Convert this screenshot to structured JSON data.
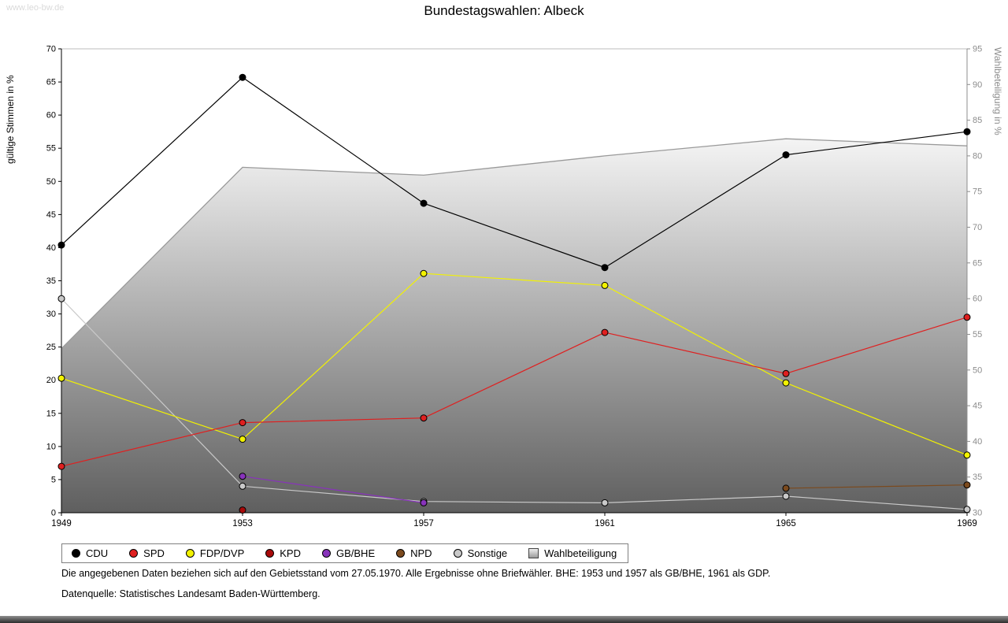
{
  "page": {
    "watermark": "www.leo-bw.de",
    "title": "Bundestagswahlen: Albeck",
    "footnotes": [
      "Die angegebenen Daten beziehen sich auf den Gebietsstand vom 27.05.1970. Alle Ergebnisse ohne Briefwähler. BHE: 1953 und 1957 als GB/BHE, 1961 als GDP.",
      "Datenquelle: Statistisches Landesamt Baden-Württemberg."
    ]
  },
  "chart_data": {
    "type": "line",
    "title": "Bundestagswahlen: Albeck",
    "x": [
      1949,
      1953,
      1957,
      1961,
      1965,
      1969
    ],
    "left_axis": {
      "label": "gültige Stimmen in %",
      "min": 0,
      "max": 70,
      "step": 5
    },
    "right_axis": {
      "label": "Wahlbeteiligung in %",
      "min": 30,
      "max": 95,
      "step": 5
    },
    "series": [
      {
        "name": "CDU",
        "color": "#000000",
        "values": [
          40.4,
          65.7,
          46.7,
          37.0,
          54.0,
          57.5
        ]
      },
      {
        "name": "SPD",
        "color": "#df2020",
        "values": [
          7.0,
          13.6,
          14.3,
          27.2,
          21.0,
          29.5
        ]
      },
      {
        "name": "FDP/DVP",
        "color": "#f2f200",
        "values": [
          20.3,
          11.1,
          36.1,
          34.3,
          19.6,
          8.7
        ]
      },
      {
        "name": "KPD",
        "color": "#a80a0a",
        "values": [
          null,
          0.4,
          null,
          null,
          null,
          null
        ]
      },
      {
        "name": "GB/BHE",
        "color": "#8833bb",
        "values": [
          null,
          5.5,
          1.5,
          null,
          null,
          null
        ]
      },
      {
        "name": "NPD",
        "color": "#7b4a1e",
        "values": [
          null,
          null,
          null,
          null,
          3.7,
          4.2
        ]
      },
      {
        "name": "Sonstige",
        "color": "#c9c9c9",
        "values": [
          32.3,
          4.0,
          1.7,
          1.5,
          2.5,
          0.5
        ]
      }
    ],
    "turnout": {
      "name": "Wahlbeteiligung",
      "values": [
        53.0,
        78.4,
        77.3,
        80.0,
        82.4,
        81.4
      ],
      "outline": "#9a9a9a",
      "fill_top": "#f4f4f4",
      "fill_bottom": "#5f5f5f"
    },
    "legend_items": [
      {
        "label": "CDU",
        "color": "#000000",
        "shape": "circle"
      },
      {
        "label": "SPD",
        "color": "#df2020",
        "shape": "circle"
      },
      {
        "label": "FDP/DVP",
        "color": "#f2f200",
        "shape": "circle"
      },
      {
        "label": "KPD",
        "color": "#a80a0a",
        "shape": "circle"
      },
      {
        "label": "GB/BHE",
        "color": "#8833bb",
        "shape": "circle"
      },
      {
        "label": "NPD",
        "color": "#7b4a1e",
        "shape": "circle"
      },
      {
        "label": "Sonstige",
        "color": "#c9c9c9",
        "shape": "circle"
      },
      {
        "label": "Wahlbeteiligung",
        "color": "#cccccc",
        "shape": "square"
      }
    ]
  }
}
